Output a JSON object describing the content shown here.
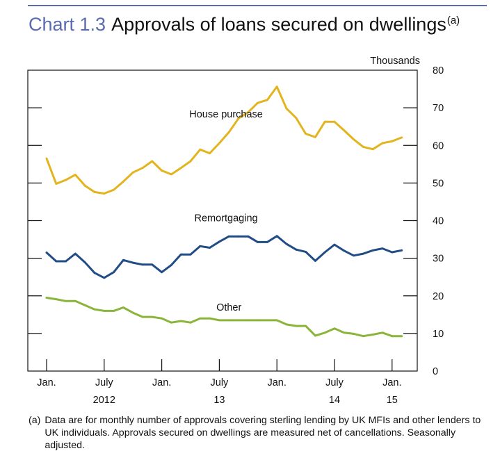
{
  "header": {
    "chart_number": "Chart 1.3",
    "title": "Approvals of loans secured on dwellings",
    "title_superscript": "(a)"
  },
  "footnote": {
    "marker": "(a)",
    "text": "Data are for monthly number of approvals covering sterling lending by UK MFIs and other lenders to UK individuals.  Approvals secured on dwellings are measured net of cancellations. Seasonally adjusted."
  },
  "colors": {
    "title_accent": "#5b6bb0",
    "house_purchase": "#e2b41e",
    "remortgaging": "#214c86",
    "other": "#8ab43a"
  },
  "chart_data": {
    "type": "line",
    "y_unit_label": "Thousands",
    "ylim": [
      0,
      80
    ],
    "y_ticks": [
      "0",
      "10",
      "20",
      "30",
      "40",
      "50",
      "60",
      "70",
      "80"
    ],
    "y_tick_values": [
      0,
      10,
      20,
      30,
      40,
      50,
      60,
      70,
      80
    ],
    "x_tick_labels": [
      "Jan.",
      "July",
      "Jan.",
      "July",
      "Jan.",
      "July",
      "Jan."
    ],
    "x_tick_month_index": [
      0,
      6,
      12,
      18,
      24,
      30,
      36
    ],
    "x_year_labels": [
      "2012",
      "13",
      "14",
      "15"
    ],
    "x_year_month_index": [
      6,
      18,
      30,
      36
    ],
    "x_months": [
      "Jan. 2012",
      "Feb. 2012",
      "Mar. 2012",
      "Apr. 2012",
      "May 2012",
      "Jun. 2012",
      "Jul. 2012",
      "Aug. 2012",
      "Sep. 2012",
      "Oct. 2012",
      "Nov. 2012",
      "Dec. 2012",
      "Jan. 2013",
      "Feb. 2013",
      "Mar. 2013",
      "Apr. 2013",
      "May 2013",
      "Jun. 2013",
      "Jul. 2013",
      "Aug. 2013",
      "Sep. 2013",
      "Oct. 2013",
      "Nov. 2013",
      "Dec. 2013",
      "Jan. 2014",
      "Feb. 2014",
      "Mar. 2014",
      "Apr. 2014",
      "May 2014",
      "Jun. 2014",
      "Jul. 2014",
      "Aug. 2014",
      "Sep. 2014",
      "Oct. 2014",
      "Nov. 2014",
      "Dec. 2014",
      "Jan. 2015",
      "Feb. 2015"
    ],
    "series": [
      {
        "name": "House purchase",
        "values": [
          56.5,
          49.8,
          50.8,
          52.2,
          49.3,
          47.6,
          47.2,
          48.2,
          50.4,
          52.8,
          54.0,
          55.8,
          53.3,
          52.3,
          54.0,
          55.8,
          58.9,
          57.9,
          60.6,
          63.5,
          67.2,
          68.8,
          71.3,
          72.1,
          75.6,
          69.8,
          67.3,
          63.1,
          62.2,
          66.3,
          66.3,
          64.0,
          61.6,
          59.6,
          59.0,
          60.6,
          61.1,
          62.1
        ],
        "label_position": "above"
      },
      {
        "name": "Remortgaging",
        "values": [
          31.5,
          29.2,
          29.2,
          31.2,
          28.9,
          26.1,
          24.8,
          26.3,
          29.5,
          28.8,
          28.3,
          28.3,
          26.3,
          28.2,
          31.0,
          31.0,
          33.2,
          32.8,
          34.4,
          35.8,
          35.8,
          35.8,
          34.3,
          34.3,
          35.9,
          33.8,
          32.3,
          31.7,
          29.3,
          31.6,
          33.6,
          32.0,
          30.7,
          31.2,
          32.1,
          32.6,
          31.6,
          32.1
        ],
        "label_position": "above"
      },
      {
        "name": "Other",
        "values": [
          19.5,
          19.1,
          18.6,
          18.6,
          17.5,
          16.4,
          16.0,
          16.0,
          16.9,
          15.5,
          14.4,
          14.4,
          14.0,
          12.9,
          13.3,
          12.9,
          14.0,
          14.0,
          13.5,
          13.5,
          13.5,
          13.5,
          13.5,
          13.5,
          13.5,
          12.4,
          12.0,
          12.0,
          9.4,
          10.2,
          11.3,
          10.2,
          9.9,
          9.3,
          9.7,
          10.2,
          9.3,
          9.3
        ],
        "label_position": "above"
      }
    ],
    "grid": false,
    "legend": "inline labels"
  }
}
